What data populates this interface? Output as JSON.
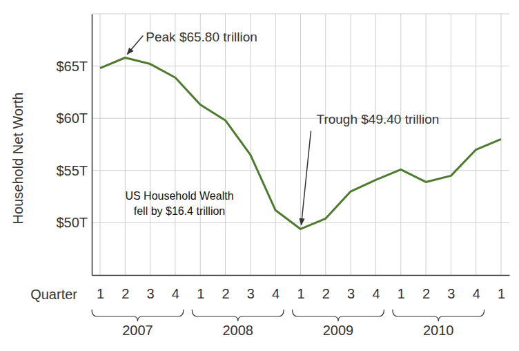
{
  "chart_data": {
    "type": "line",
    "y_label": "Household Net Worth",
    "x_label": "Quarter",
    "categories": [
      "1",
      "2",
      "3",
      "4",
      "1",
      "2",
      "3",
      "4",
      "1",
      "2",
      "3",
      "4",
      "1",
      "2",
      "3",
      "4",
      "1"
    ],
    "year_groups": [
      {
        "label": "2007",
        "from": 0,
        "to": 3
      },
      {
        "label": "2008",
        "from": 4,
        "to": 7
      },
      {
        "label": "2009",
        "from": 8,
        "to": 11
      },
      {
        "label": "2010",
        "from": 12,
        "to": 15
      }
    ],
    "values": [
      64.8,
      65.8,
      65.2,
      63.9,
      61.3,
      59.8,
      56.5,
      51.2,
      49.4,
      50.4,
      53.0,
      54.1,
      55.1,
      53.9,
      54.5,
      57.0,
      58.0
    ],
    "color": "#4f7b2f",
    "ylim": [
      45,
      70
    ],
    "yticks": [
      {
        "value": 50,
        "label": "$50T"
      },
      {
        "value": 55,
        "label": "$55T"
      },
      {
        "value": 60,
        "label": "$60T"
      },
      {
        "value": 65,
        "label": "$65T"
      }
    ],
    "grid": true,
    "annotations": [
      {
        "text": "Peak $65.80 trillion",
        "index": 1
      },
      {
        "text": "Trough $49.40 trillion",
        "index": 8
      }
    ],
    "note": [
      "US Household Wealth",
      "fell by $16.4 trillion"
    ]
  }
}
